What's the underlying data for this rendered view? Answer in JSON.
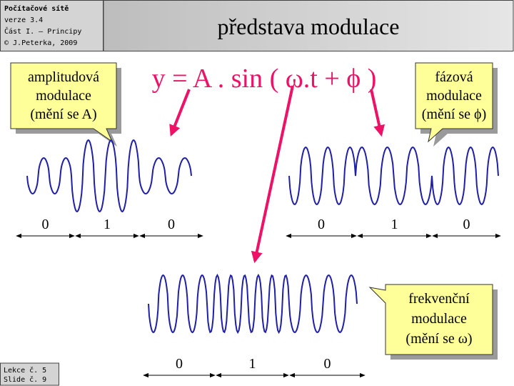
{
  "header": {
    "lines": [
      "Počítačové sítě",
      "verze 3.4",
      "Část I. – Principy",
      "© J.Peterka, 2009"
    ]
  },
  "title": "představa modulace",
  "formula": "y = A . sin ( ω.t + ϕ )",
  "callouts": [
    {
      "lines": [
        "amplitudová",
        "modulace",
        "(mění se A)"
      ]
    },
    {
      "lines": [
        "fázová",
        "modulace",
        "(mění se ϕ)"
      ]
    },
    {
      "lines": [
        "frekvenční",
        "modulace",
        "(mění se ω)"
      ]
    }
  ],
  "diagrams": [
    {
      "bits": [
        "0",
        "1",
        "0"
      ]
    },
    {
      "bits": [
        "0",
        "1",
        "0"
      ]
    },
    {
      "bits": [
        "0",
        "1",
        "0"
      ]
    }
  ],
  "footer": {
    "lines": [
      "Lekce č. 5",
      "Slide č. 9"
    ]
  }
}
